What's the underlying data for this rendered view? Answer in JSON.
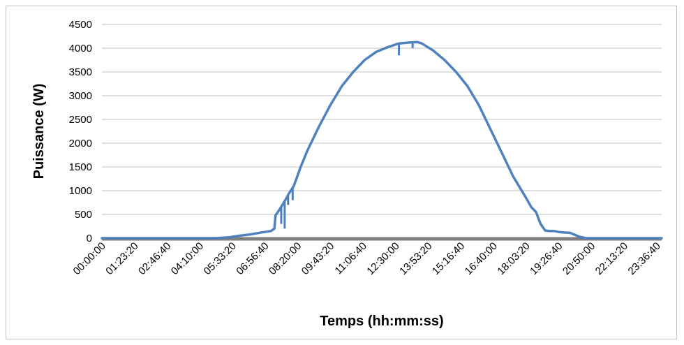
{
  "chart_data": {
    "type": "line",
    "title": "",
    "xlabel": "Temps (hh:mm:ss)",
    "ylabel": "Puissance (W)",
    "ylim": [
      0,
      4500
    ],
    "yticks": [
      0,
      500,
      1000,
      1500,
      2000,
      2500,
      3000,
      3500,
      4000,
      4500
    ],
    "xlim_hours": [
      0,
      24.5
    ],
    "xtick_labels": [
      "00:00:00",
      "01:23:20",
      "02:46:40",
      "04:10:00",
      "05:33:20",
      "06:56:40",
      "08:20:00",
      "09:43:20",
      "11:06:40",
      "12:30:00",
      "13:53:20",
      "15:16:40",
      "16:40:00",
      "18:03:20",
      "19:26:40",
      "20:50:00",
      "22:13:20",
      "23:36:40"
    ],
    "grid": "horizontal",
    "legend": "none",
    "colors": {
      "line": "#4f81bd",
      "baseline": "#808080",
      "grid": "#c0c0c0"
    },
    "series": [
      {
        "time_hours": [
          0,
          5.0,
          5.6,
          6.0,
          6.5,
          7.0,
          7.4,
          7.55,
          7.6,
          7.8,
          8.0,
          8.2,
          8.4,
          8.7,
          9.0,
          9.5,
          10.0,
          10.5,
          11.0,
          11.5,
          12.0,
          12.5,
          13.0,
          13.5,
          13.8,
          14.0,
          14.5,
          15.0,
          15.5,
          16.0,
          16.5,
          17.0,
          17.5,
          18.0,
          18.5,
          18.8,
          19.0,
          19.2,
          19.4,
          19.6,
          19.8,
          20.0,
          20.5,
          20.9,
          21.2,
          24.5
        ],
        "power_w": [
          0,
          0,
          20,
          50,
          80,
          120,
          150,
          200,
          480,
          620,
          780,
          950,
          1100,
          1500,
          1850,
          2350,
          2800,
          3200,
          3500,
          3750,
          3920,
          4020,
          4100,
          4120,
          4130,
          4100,
          3950,
          3750,
          3500,
          3200,
          2800,
          2300,
          1800,
          1300,
          900,
          650,
          550,
          300,
          160,
          150,
          150,
          130,
          110,
          30,
          0,
          0
        ]
      }
    ],
    "dips": [
      {
        "time_hours": 7.85,
        "power_w": 300
      },
      {
        "time_hours": 8.0,
        "power_w": 200
      },
      {
        "time_hours": 8.15,
        "power_w": 700
      },
      {
        "time_hours": 8.35,
        "power_w": 800
      },
      {
        "time_hours": 13.0,
        "power_w": 3850
      },
      {
        "time_hours": 13.6,
        "power_w": 4000
      }
    ]
  }
}
